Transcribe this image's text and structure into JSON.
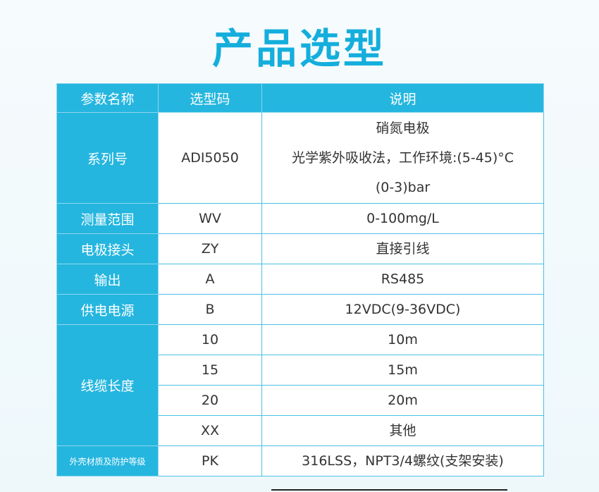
{
  "title": "产品选型",
  "table": {
    "header": [
      "参数名称",
      "选型码",
      "说明"
    ],
    "groups": [
      {
        "param": "系列号",
        "options": [
          {
            "code": "ADI5050",
            "desc": [
              "硝氮电极",
              "光学紫外吸收法，工作环境:(5-45)°C",
              "(0-3)bar"
            ]
          }
        ]
      },
      {
        "param": "测量范围",
        "options": [
          {
            "code": "WV",
            "desc": [
              "0-100mg/L"
            ]
          }
        ]
      },
      {
        "param": "电极接头",
        "options": [
          {
            "code": "ZY",
            "desc": [
              "直接引线"
            ]
          }
        ]
      },
      {
        "param": "输出",
        "options": [
          {
            "code": "A",
            "desc": [
              "RS485"
            ]
          }
        ]
      },
      {
        "param": "供电电源",
        "options": [
          {
            "code": "B",
            "desc": [
              "12VDC(9-36VDC)"
            ]
          }
        ]
      },
      {
        "param": "线缆长度",
        "options": [
          {
            "code": "10",
            "desc": [
              "10m"
            ]
          },
          {
            "code": "15",
            "desc": [
              "15m"
            ]
          },
          {
            "code": "20",
            "desc": [
              "20m"
            ]
          },
          {
            "code": "XX",
            "desc": [
              "其他"
            ]
          }
        ]
      },
      {
        "param": "外壳材质及防护等级",
        "options": [
          {
            "code": "PK",
            "desc": [
              "316LSS，NPT3/4螺纹(支架安装)"
            ]
          }
        ]
      }
    ]
  }
}
